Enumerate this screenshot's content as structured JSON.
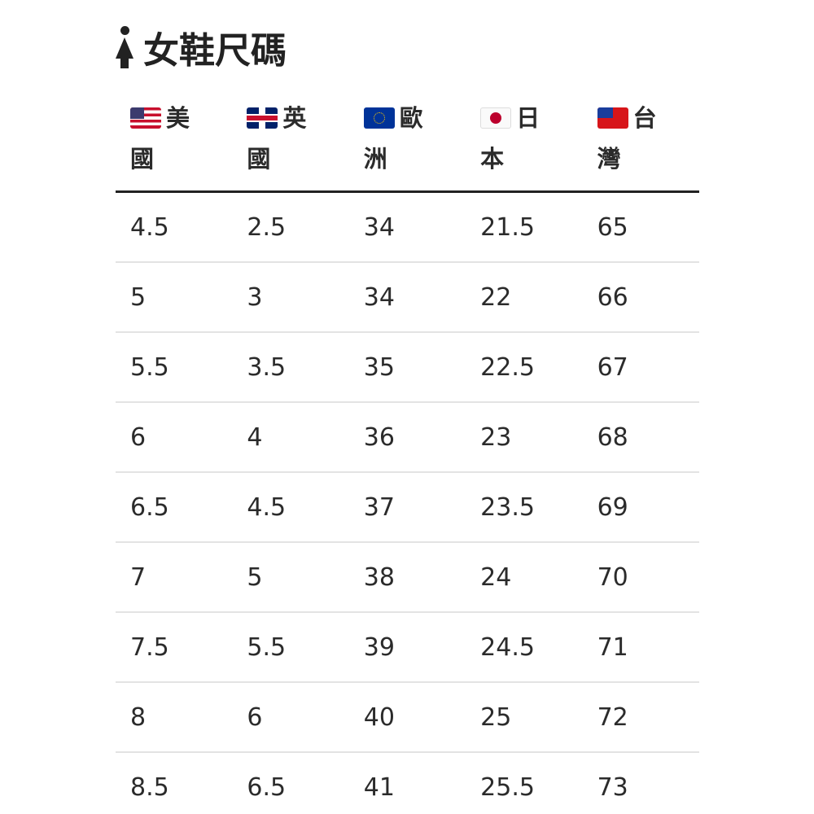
{
  "title": {
    "icon": "woman-icon",
    "text": "女鞋尺碼"
  },
  "columns": [
    {
      "flag": "us-flag-icon",
      "label": "美國"
    },
    {
      "flag": "uk-flag-icon",
      "label": "英國"
    },
    {
      "flag": "eu-flag-icon",
      "label": "歐洲"
    },
    {
      "flag": "jp-flag-icon",
      "label": "日本"
    },
    {
      "flag": "tw-flag-icon",
      "label": "台灣"
    }
  ],
  "rows": [
    [
      "4.5",
      "2.5",
      "34",
      "21.5",
      "65"
    ],
    [
      "5",
      "3",
      "34",
      "22",
      "66"
    ],
    [
      "5.5",
      "3.5",
      "35",
      "22.5",
      "67"
    ],
    [
      "6",
      "4",
      "36",
      "23",
      "68"
    ],
    [
      "6.5",
      "4.5",
      "37",
      "23.5",
      "69"
    ],
    [
      "7",
      "5",
      "38",
      "24",
      "70"
    ],
    [
      "7.5",
      "5.5",
      "39",
      "24.5",
      "71"
    ],
    [
      "8",
      "6",
      "40",
      "25",
      "72"
    ],
    [
      "8.5",
      "6.5",
      "41",
      "25.5",
      "73"
    ]
  ]
}
